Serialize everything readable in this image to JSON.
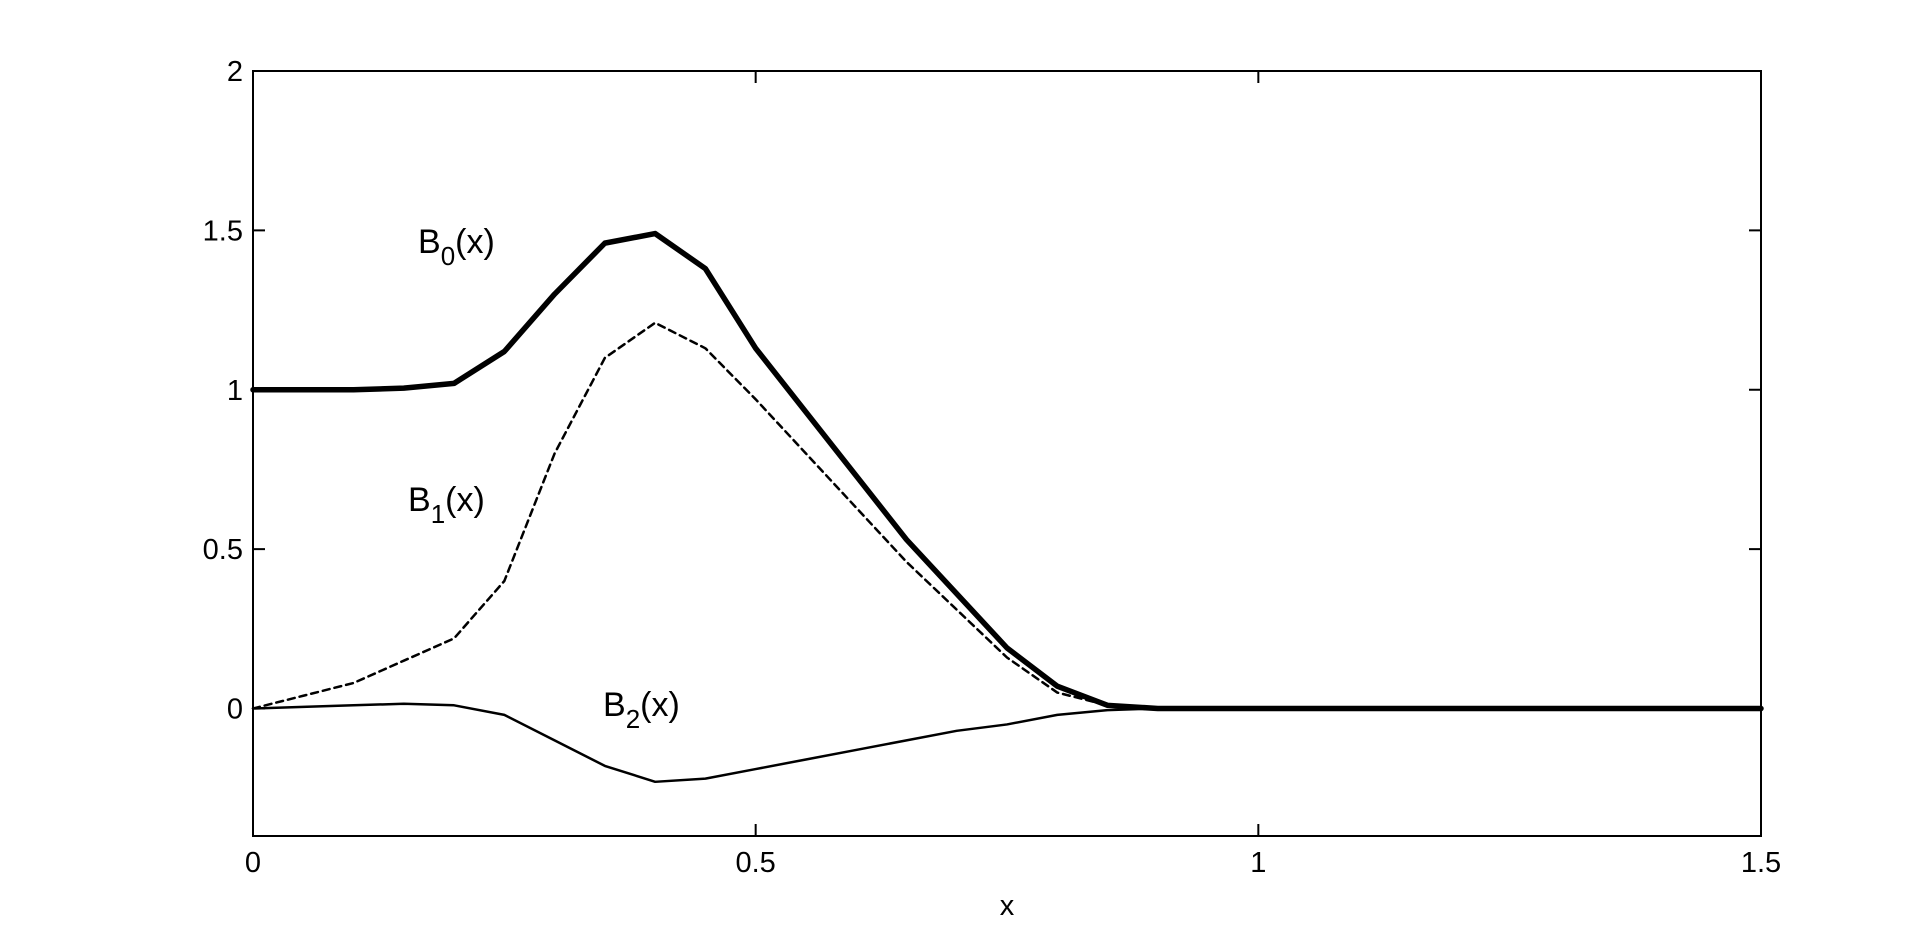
{
  "chart_data": {
    "type": "line",
    "xlabel": "x",
    "x": [
      0,
      0.05,
      0.1,
      0.15,
      0.2,
      0.25,
      0.3,
      0.35,
      0.4,
      0.45,
      0.5,
      0.55,
      0.6,
      0.65,
      0.7,
      0.75,
      0.8,
      0.85,
      0.9,
      1,
      1.5
    ],
    "series": [
      {
        "label_parts": [
          "B",
          "0",
          "(x)"
        ],
        "color": "#000000",
        "style": "thick",
        "values": [
          1,
          1,
          1,
          1.005,
          1.02,
          1.12,
          1.3,
          1.46,
          1.49,
          1.38,
          1.13,
          0.93,
          0.73,
          0.53,
          0.36,
          0.19,
          0.07,
          0.01,
          0,
          0,
          0
        ]
      },
      {
        "label_parts": [
          "B",
          "1",
          "(x)"
        ],
        "color": "#000000",
        "style": "dashed",
        "values": [
          0,
          0.04,
          0.08,
          0.15,
          0.22,
          0.4,
          0.8,
          1.1,
          1.21,
          1.13,
          0.97,
          0.8,
          0.63,
          0.46,
          0.31,
          0.16,
          0.05,
          0.01,
          0,
          0,
          0
        ]
      },
      {
        "label_parts": [
          "B",
          "2",
          "(x)"
        ],
        "color": "#000000",
        "style": "solid",
        "values": [
          0,
          0.005,
          0.01,
          0.015,
          0.01,
          -0.02,
          -0.1,
          -0.18,
          -0.23,
          -0.22,
          -0.19,
          -0.16,
          -0.13,
          -0.1,
          -0.07,
          -0.05,
          -0.02,
          -0.005,
          0,
          0,
          0
        ]
      }
    ],
    "xlim": [
      0,
      1.5
    ],
    "xticks": [
      0,
      0.5,
      1,
      1.5
    ],
    "ylim": [
      -0.4,
      2
    ],
    "yticks": [
      0,
      0.5,
      1,
      1.5,
      2
    ],
    "grid": false
  }
}
